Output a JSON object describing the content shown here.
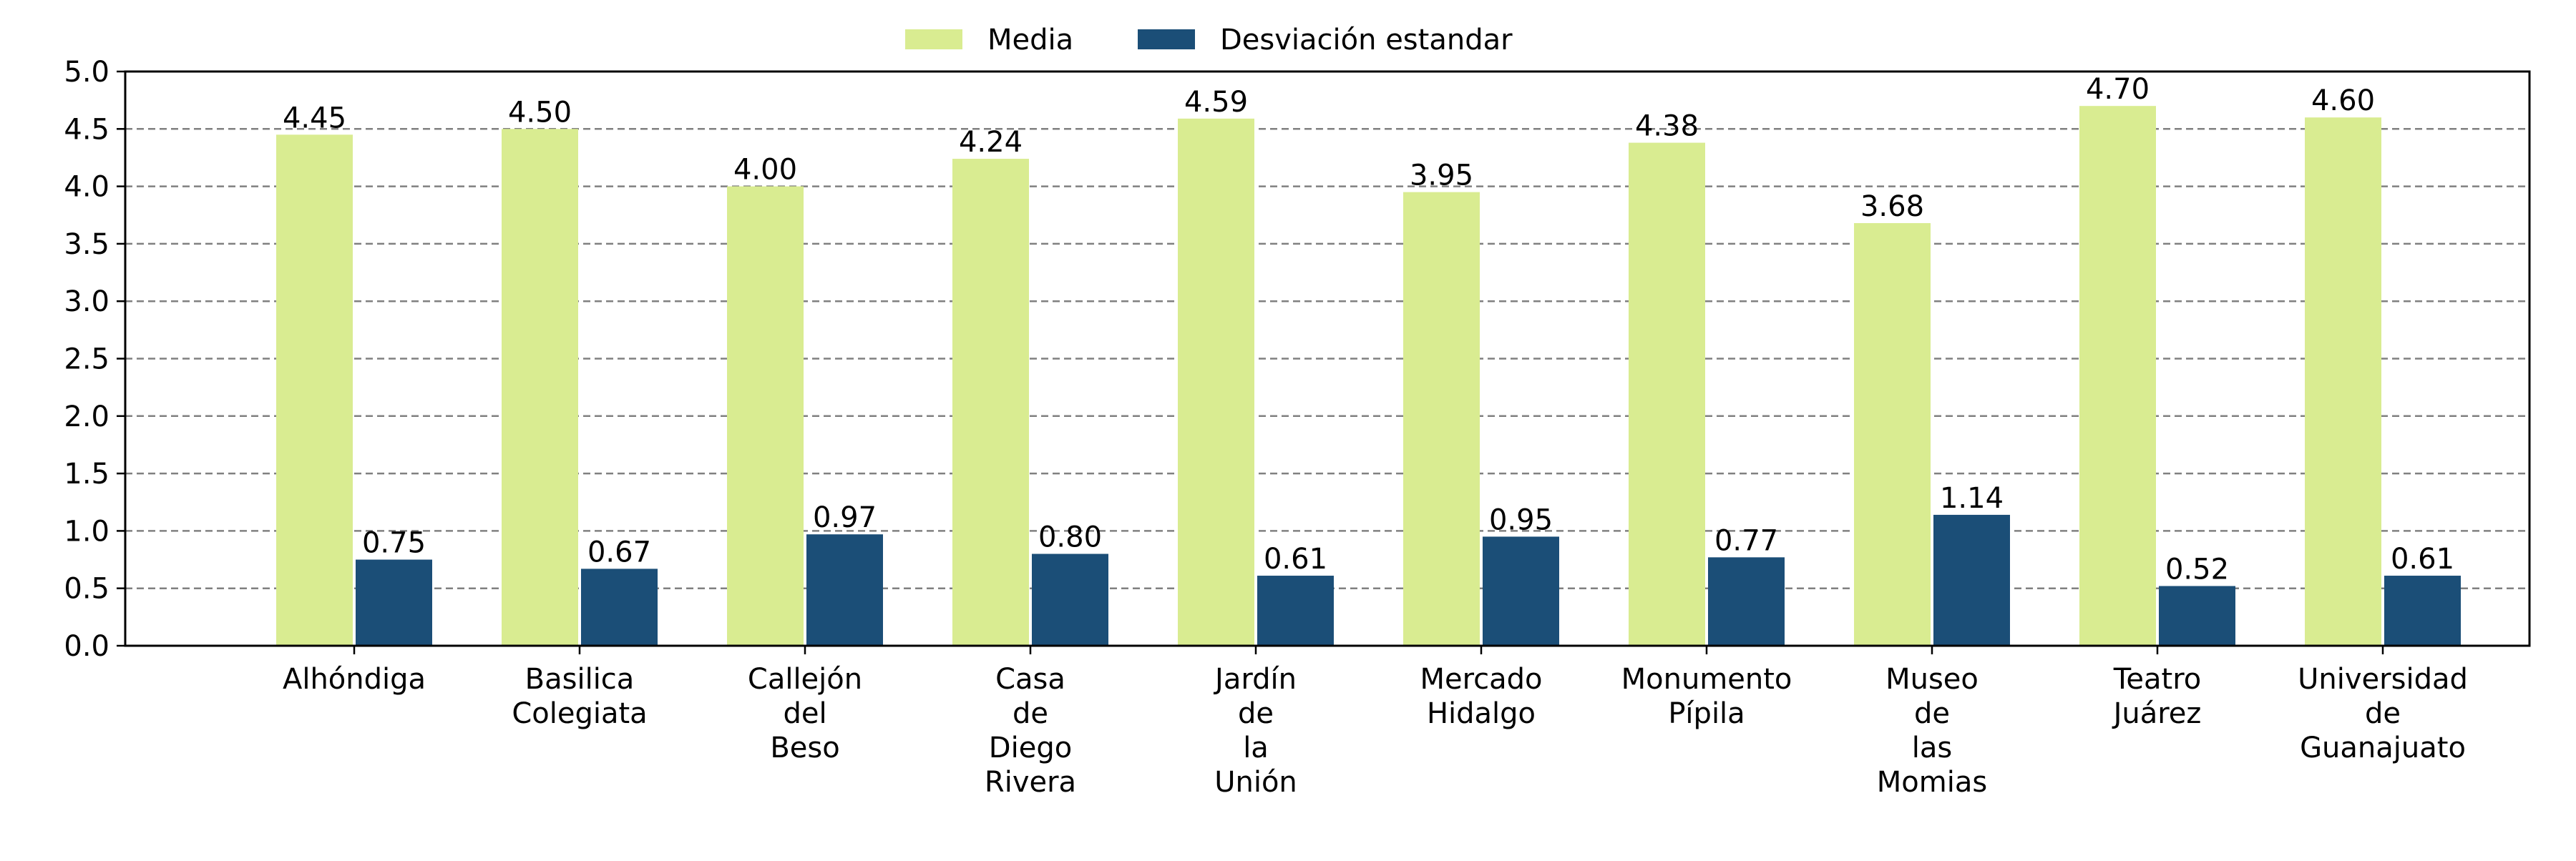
{
  "chart_data": {
    "type": "bar",
    "categories": [
      [
        "Alhóndiga"
      ],
      [
        "Basilica",
        "Colegiata"
      ],
      [
        "Callejón",
        "del",
        "Beso"
      ],
      [
        "Casa",
        "de",
        "Diego",
        "Rivera"
      ],
      [
        "Jardín",
        "de",
        "la",
        "Unión"
      ],
      [
        "Mercado",
        "Hidalgo"
      ],
      [
        "Monumento",
        "Pípila"
      ],
      [
        "Museo",
        "de",
        "las",
        "Momias"
      ],
      [
        "Teatro",
        "Juárez"
      ],
      [
        "Universidad",
        "de",
        "Guanajuato"
      ]
    ],
    "series": [
      {
        "name": "Media",
        "color": "#d9ec91",
        "values": [
          4.45,
          4.5,
          4.0,
          4.24,
          4.59,
          3.95,
          4.38,
          3.68,
          4.7,
          4.6
        ],
        "labels": [
          "4.45",
          "4.50",
          "4.00",
          "4.24",
          "4.59",
          "3.95",
          "4.38",
          "3.68",
          "4.70",
          "4.60"
        ]
      },
      {
        "name": "Desviación estandar",
        "color": "#1b4e77",
        "values": [
          0.75,
          0.67,
          0.97,
          0.8,
          0.61,
          0.95,
          0.77,
          1.14,
          0.52,
          0.61
        ],
        "labels": [
          "0.75",
          "0.67",
          "0.97",
          "0.80",
          "0.61",
          "0.95",
          "0.77",
          "1.14",
          "0.52",
          "0.61"
        ]
      }
    ],
    "ylim": [
      0,
      5
    ],
    "yticks": [
      "0.0",
      "0.5",
      "1.0",
      "1.5",
      "2.0",
      "2.5",
      "3.0",
      "3.5",
      "4.0",
      "4.5",
      "5.0"
    ],
    "grid": "horizontal dashed",
    "legend_position": "top-center",
    "title": "",
    "xlabel": "",
    "ylabel": ""
  }
}
